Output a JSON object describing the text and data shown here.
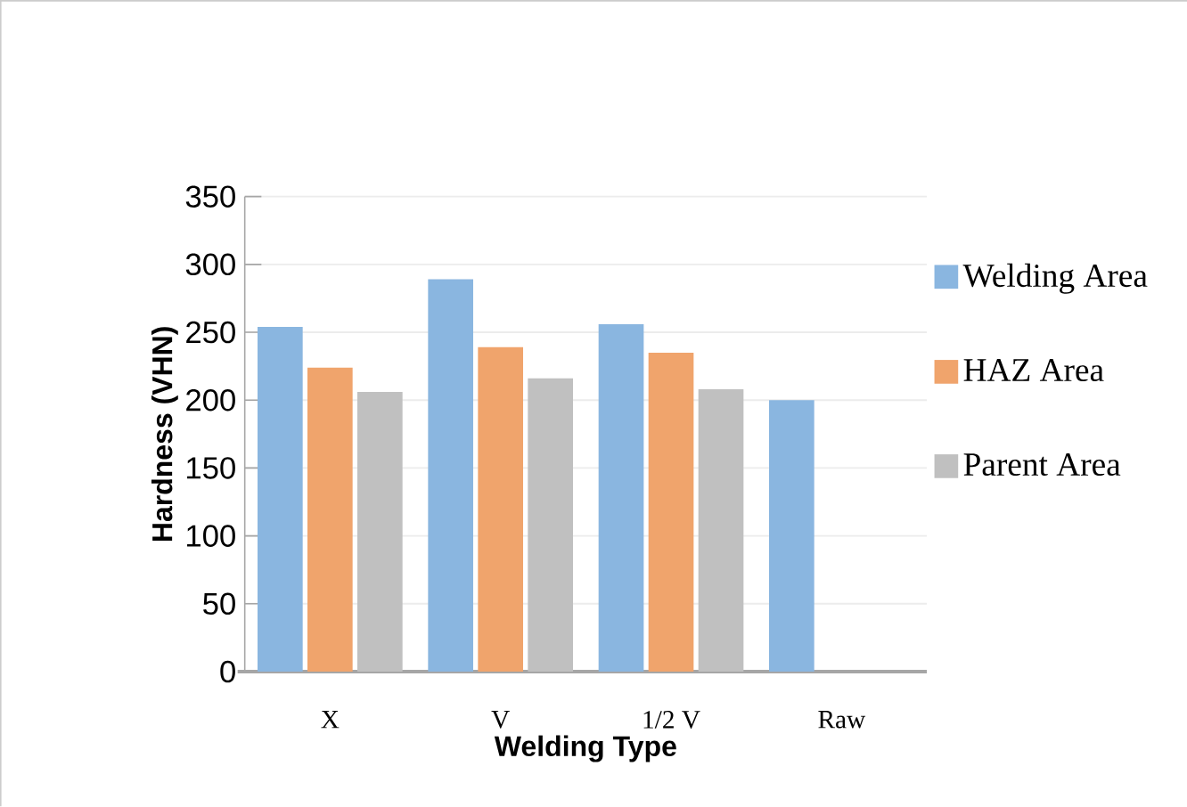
{
  "chart_data": {
    "type": "bar",
    "xlabel": "Welding Type",
    "ylabel": "Hardness (VHN)",
    "categories": [
      "X",
      "V",
      "1/2 V",
      "Raw"
    ],
    "series": [
      {
        "name": "Welding Area",
        "color": "#8ab6e0",
        "values": [
          254,
          289,
          256,
          200
        ]
      },
      {
        "name": "HAZ Area",
        "color": "#f0a46c",
        "values": [
          224,
          239,
          235,
          null
        ]
      },
      {
        "name": "Parent Area",
        "color": "#c0c0c0",
        "values": [
          206,
          216,
          208,
          null
        ]
      }
    ],
    "ylim": [
      0,
      350
    ],
    "yticks": [
      0,
      50,
      100,
      150,
      200,
      250,
      300,
      350
    ],
    "grid": "y",
    "legend": "right"
  }
}
